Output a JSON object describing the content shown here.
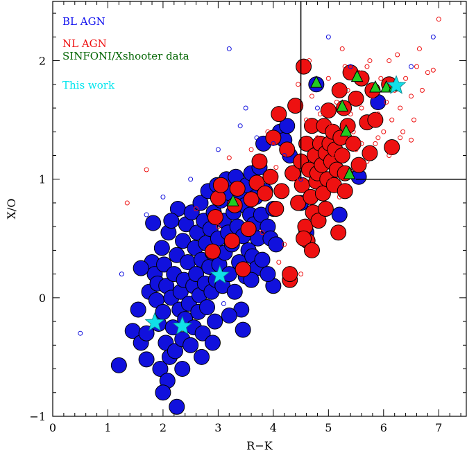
{
  "chart_data": {
    "type": "scatter",
    "xlabel": "R−K",
    "ylabel": "X/O",
    "xlim": [
      0,
      7.5
    ],
    "ylim": [
      -1,
      2.5
    ],
    "x_ticks": [
      "0",
      "1",
      "2",
      "3",
      "4",
      "5",
      "6",
      "7"
    ],
    "y_ticks": [
      "−1",
      "0",
      "1",
      "2"
    ],
    "legend": [
      {
        "label": "BL AGN",
        "color": "#1010ee"
      },
      {
        "label": "NL AGN",
        "color": "#ee1010"
      },
      {
        "label": "SINFONI/Xshooter data",
        "color": "#006400"
      },
      {
        "label": "This work",
        "color": "#00e5ee"
      }
    ],
    "colors": {
      "bl": "#1111dd",
      "nl": "#ee1111",
      "triangle": "#22cc22",
      "star": "#11e0e8"
    },
    "region_lines": {
      "vertical_x": 4.5,
      "horizontal_y": 1.0,
      "horizontal_x_start": 5.5
    },
    "series": [
      {
        "name": "BL AGN",
        "marker": "large-circle",
        "points": [
          [
            1.2,
            -0.57
          ],
          [
            1.45,
            -0.28
          ],
          [
            1.55,
            -0.1
          ],
          [
            1.6,
            -0.38
          ],
          [
            1.7,
            -0.52
          ],
          [
            1.75,
            0.05
          ],
          [
            1.8,
            0.3
          ],
          [
            1.82,
            0.63
          ],
          [
            1.85,
            0.2
          ],
          [
            1.88,
            -0.02
          ],
          [
            1.9,
            0.12
          ],
          [
            1.92,
            -0.22
          ],
          [
            1.95,
            -0.6
          ],
          [
            1.98,
            0.42
          ],
          [
            2.0,
            -0.12
          ],
          [
            2.02,
            0.28
          ],
          [
            2.05,
            -0.38
          ],
          [
            2.06,
            0.1
          ],
          [
            2.08,
            -0.7
          ],
          [
            2.1,
            0.55
          ],
          [
            2.12,
            -0.5
          ],
          [
            2.15,
            0.0
          ],
          [
            2.18,
            -0.25
          ],
          [
            2.2,
            0.2
          ],
          [
            2.22,
            -0.45
          ],
          [
            2.25,
            0.36
          ],
          [
            2.25,
            -0.92
          ],
          [
            2.27,
            0.75
          ],
          [
            2.3,
            -0.1
          ],
          [
            2.32,
            0.05
          ],
          [
            2.35,
            -0.35
          ],
          [
            2.36,
            0.48
          ],
          [
            2.38,
            0.15
          ],
          [
            2.4,
            -0.18
          ],
          [
            2.42,
            0.62
          ],
          [
            2.45,
            0.3
          ],
          [
            2.47,
            -0.05
          ],
          [
            2.5,
            -0.4
          ],
          [
            2.52,
            0.72
          ],
          [
            2.55,
            0.1
          ],
          [
            2.56,
            -0.25
          ],
          [
            2.58,
            0.42
          ],
          [
            2.6,
            0.2
          ],
          [
            2.62,
            0.55
          ],
          [
            2.64,
            -0.12
          ],
          [
            2.66,
            0.02
          ],
          [
            2.68,
            0.8
          ],
          [
            2.7,
            0.32
          ],
          [
            2.72,
            -0.3
          ],
          [
            2.74,
            0.65
          ],
          [
            2.76,
            0.12
          ],
          [
            2.78,
            0.46
          ],
          [
            2.8,
            -0.08
          ],
          [
            2.82,
            0.9
          ],
          [
            2.84,
            0.26
          ],
          [
            2.86,
            0.58
          ],
          [
            2.88,
            0.05
          ],
          [
            2.9,
            0.38
          ],
          [
            2.92,
            0.72
          ],
          [
            2.94,
            -0.2
          ],
          [
            2.96,
            0.15
          ],
          [
            2.98,
            0.95
          ],
          [
            3.0,
            0.5
          ],
          [
            3.02,
            0.28
          ],
          [
            3.05,
            0.82
          ],
          [
            3.08,
            0.1
          ],
          [
            3.1,
            0.65
          ],
          [
            3.12,
            0.38
          ],
          [
            3.15,
            1.0
          ],
          [
            3.18,
            0.55
          ],
          [
            3.2,
            0.2
          ],
          [
            3.22,
            0.88
          ],
          [
            3.25,
            0.45
          ],
          [
            3.28,
            0.72
          ],
          [
            3.3,
            0.05
          ],
          [
            3.32,
            1.02
          ],
          [
            3.35,
            0.6
          ],
          [
            3.38,
            0.3
          ],
          [
            3.4,
            0.85
          ],
          [
            3.42,
            -0.1
          ],
          [
            3.45,
            0.52
          ],
          [
            3.45,
            -0.27
          ],
          [
            3.48,
            0.78
          ],
          [
            3.5,
            0.18
          ],
          [
            3.52,
            0.95
          ],
          [
            3.55,
            0.4
          ],
          [
            3.58,
            0.7
          ],
          [
            3.6,
            1.05
          ],
          [
            3.62,
            0.35
          ],
          [
            3.65,
            0.62
          ],
          [
            3.68,
            0.85
          ],
          [
            3.7,
            0.25
          ],
          [
            3.72,
            0.5
          ],
          [
            3.75,
            1.1
          ],
          [
            3.78,
            0.7
          ],
          [
            3.8,
            0.32
          ],
          [
            3.82,
            1.3
          ],
          [
            3.85,
            0.9
          ],
          [
            3.9,
            0.6
          ],
          [
            3.95,
            0.5
          ],
          [
            4.0,
            0.75
          ],
          [
            4.0,
            0.1
          ],
          [
            4.05,
            0.45
          ],
          [
            4.12,
            1.4
          ],
          [
            4.2,
            1.33
          ],
          [
            4.25,
            1.45
          ],
          [
            4.3,
            1.2
          ],
          [
            4.35,
            1.05
          ],
          [
            4.5,
            0.8
          ],
          [
            4.6,
            0.55
          ],
          [
            4.78,
            1.8
          ],
          [
            5.2,
            0.7
          ],
          [
            5.55,
            1.02
          ],
          [
            5.9,
            1.65
          ],
          [
            1.6,
            0.25
          ],
          [
            1.7,
            -0.3
          ],
          [
            2.0,
            -0.8
          ],
          [
            2.15,
            0.65
          ],
          [
            2.35,
            -0.6
          ],
          [
            2.7,
            -0.5
          ],
          [
            2.9,
            -0.38
          ],
          [
            3.2,
            -0.15
          ],
          [
            3.6,
            0.15
          ],
          [
            3.9,
            0.2
          ]
        ]
      },
      {
        "name": "NL AGN",
        "marker": "large-circle",
        "points": [
          [
            2.9,
            0.39
          ],
          [
            2.95,
            0.68
          ],
          [
            3.0,
            0.84
          ],
          [
            3.05,
            0.95
          ],
          [
            3.25,
            0.48
          ],
          [
            3.3,
            0.78
          ],
          [
            3.35,
            0.92
          ],
          [
            3.45,
            0.24
          ],
          [
            3.55,
            0.58
          ],
          [
            3.6,
            0.83
          ],
          [
            3.7,
            0.97
          ],
          [
            3.75,
            1.15
          ],
          [
            3.85,
            0.88
          ],
          [
            3.95,
            1.02
          ],
          [
            4.0,
            1.35
          ],
          [
            4.05,
            0.75
          ],
          [
            4.1,
            1.55
          ],
          [
            4.15,
            0.9
          ],
          [
            4.25,
            1.25
          ],
          [
            4.3,
            0.15
          ],
          [
            4.35,
            1.05
          ],
          [
            4.4,
            1.62
          ],
          [
            4.45,
            0.8
          ],
          [
            4.5,
            1.15
          ],
          [
            4.52,
            0.95
          ],
          [
            4.55,
            1.95
          ],
          [
            4.58,
            0.6
          ],
          [
            4.6,
            1.3
          ],
          [
            4.62,
            0.48
          ],
          [
            4.65,
            1.08
          ],
          [
            4.68,
            0.85
          ],
          [
            4.7,
            1.45
          ],
          [
            4.72,
            0.72
          ],
          [
            4.75,
            1.2
          ],
          [
            4.78,
            0.98
          ],
          [
            4.8,
            1.05
          ],
          [
            4.82,
            0.65
          ],
          [
            4.85,
            1.3
          ],
          [
            4.88,
            1.12
          ],
          [
            4.9,
            0.88
          ],
          [
            4.92,
            1.45
          ],
          [
            4.95,
            1.22
          ],
          [
            4.98,
            1.0
          ],
          [
            5.0,
            1.58
          ],
          [
            5.02,
            1.3
          ],
          [
            5.05,
            1.15
          ],
          [
            5.08,
            1.4
          ],
          [
            5.1,
            0.95
          ],
          [
            5.12,
            1.25
          ],
          [
            5.15,
            1.08
          ],
          [
            5.18,
            0.55
          ],
          [
            5.2,
            1.75
          ],
          [
            5.22,
            1.35
          ],
          [
            5.25,
            1.2
          ],
          [
            5.28,
            1.6
          ],
          [
            5.3,
            1.05
          ],
          [
            5.35,
            1.45
          ],
          [
            5.4,
            1.9
          ],
          [
            5.45,
            1.3
          ],
          [
            5.5,
            1.68
          ],
          [
            5.55,
            1.12
          ],
          [
            5.6,
            1.85
          ],
          [
            5.7,
            1.48
          ],
          [
            5.75,
            1.22
          ],
          [
            5.8,
            1.75
          ],
          [
            5.85,
            1.5
          ],
          [
            6.1,
            1.8
          ],
          [
            6.15,
            1.27
          ],
          [
            4.3,
            0.2
          ],
          [
            4.55,
            0.5
          ],
          [
            4.7,
            0.4
          ],
          [
            4.95,
            0.75
          ],
          [
            5.3,
            0.9
          ]
        ]
      },
      {
        "name": "BL AGN",
        "marker": "small-circle",
        "points": [
          [
            0.5,
            -0.3
          ],
          [
            1.25,
            0.2
          ],
          [
            1.7,
            0.7
          ],
          [
            2.0,
            0.85
          ],
          [
            2.5,
            1.0
          ],
          [
            3.0,
            1.25
          ],
          [
            3.1,
            -0.05
          ],
          [
            3.2,
            2.1
          ],
          [
            3.4,
            1.45
          ],
          [
            3.5,
            1.6
          ],
          [
            3.7,
            1.35
          ],
          [
            4.0,
            1.3
          ],
          [
            4.2,
            1.2
          ],
          [
            4.5,
            1.0
          ],
          [
            4.8,
            1.6
          ],
          [
            5.0,
            2.2
          ],
          [
            5.4,
            1.95
          ],
          [
            6.3,
            1.8
          ],
          [
            6.5,
            1.95
          ],
          [
            6.9,
            2.2
          ]
        ]
      },
      {
        "name": "NL AGN",
        "marker": "small-circle",
        "points": [
          [
            1.35,
            0.8
          ],
          [
            1.7,
            1.08
          ],
          [
            2.6,
            0.75
          ],
          [
            3.0,
            0.6
          ],
          [
            3.2,
            1.18
          ],
          [
            3.4,
            0.95
          ],
          [
            3.6,
            1.25
          ],
          [
            3.8,
            0.55
          ],
          [
            3.9,
            1.4
          ],
          [
            4.05,
            1.1
          ],
          [
            4.1,
            0.3
          ],
          [
            4.2,
            0.45
          ],
          [
            4.3,
            1.25
          ],
          [
            4.4,
            1.0
          ],
          [
            4.5,
            0.2
          ],
          [
            4.6,
            1.5
          ],
          [
            4.7,
            1.7
          ],
          [
            4.8,
            1.35
          ],
          [
            4.85,
            1.55
          ],
          [
            4.9,
            1.1
          ],
          [
            5.0,
            1.85
          ],
          [
            5.05,
            1.45
          ],
          [
            5.1,
            1.2
          ],
          [
            5.15,
            1.65
          ],
          [
            5.2,
            1.35
          ],
          [
            5.3,
            1.95
          ],
          [
            5.35,
            1.75
          ],
          [
            5.4,
            1.55
          ],
          [
            5.45,
            1.4
          ],
          [
            5.5,
            1.25
          ],
          [
            5.55,
            1.9
          ],
          [
            5.6,
            1.6
          ],
          [
            5.65,
            1.45
          ],
          [
            5.7,
            1.15
          ],
          [
            5.75,
            2.0
          ],
          [
            5.8,
            1.7
          ],
          [
            5.85,
            1.3
          ],
          [
            5.9,
            1.55
          ],
          [
            5.95,
            1.85
          ],
          [
            6.0,
            1.4
          ],
          [
            6.05,
            1.65
          ],
          [
            6.1,
            2.0
          ],
          [
            6.15,
            1.5
          ],
          [
            6.2,
            1.75
          ],
          [
            6.25,
            2.05
          ],
          [
            6.3,
            1.6
          ],
          [
            6.35,
            1.4
          ],
          [
            6.4,
            1.85
          ],
          [
            6.5,
            1.7
          ],
          [
            6.55,
            1.5
          ],
          [
            6.6,
            1.95
          ],
          [
            6.65,
            2.1
          ],
          [
            6.7,
            1.75
          ],
          [
            6.8,
            1.9
          ],
          [
            6.9,
            1.92
          ],
          [
            7.0,
            2.35
          ],
          [
            5.0,
            1.0
          ],
          [
            5.2,
            0.85
          ],
          [
            5.6,
            1.3
          ],
          [
            6.1,
            1.2
          ],
          [
            6.3,
            1.35
          ],
          [
            6.5,
            1.33
          ],
          [
            5.7,
            1.95
          ],
          [
            5.9,
            1.35
          ],
          [
            4.45,
            1.8
          ],
          [
            4.65,
            2.0
          ],
          [
            5.25,
            2.1
          ]
        ]
      },
      {
        "name": "SINFONI/Xshooter data",
        "marker": "triangle",
        "points": [
          [
            3.27,
            0.81
          ],
          [
            4.78,
            1.81
          ],
          [
            5.25,
            1.61
          ],
          [
            5.32,
            1.4
          ],
          [
            5.38,
            1.04
          ],
          [
            5.52,
            1.86
          ],
          [
            5.85,
            1.77
          ],
          [
            6.05,
            1.77
          ],
          [
            6.2,
            1.78
          ]
        ]
      },
      {
        "name": "This work",
        "marker": "star",
        "points": [
          [
            1.85,
            -0.21
          ],
          [
            2.35,
            -0.24
          ],
          [
            3.03,
            0.19
          ],
          [
            6.23,
            1.79
          ]
        ]
      }
    ]
  }
}
